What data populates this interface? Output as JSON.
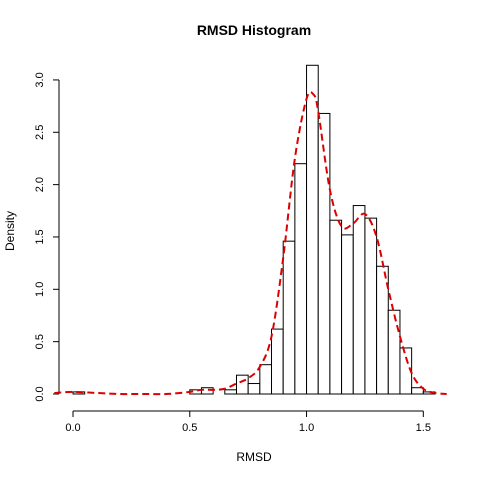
{
  "chart_data": {
    "type": "bar",
    "title": "RMSD Histogram",
    "xlabel": "RMSD",
    "ylabel": "Density",
    "xlim": [
      -0.06,
      1.61
    ],
    "ylim": [
      0,
      3.2
    ],
    "x_ticks": [
      0.0,
      0.5,
      1.0,
      1.5
    ],
    "x_tick_labels": [
      "0.0",
      "0.5",
      "1.0",
      "1.5"
    ],
    "y_ticks": [
      0.0,
      0.5,
      1.0,
      1.5,
      2.0,
      2.5,
      3.0
    ],
    "y_tick_labels": [
      "0.0",
      "0.5",
      "1.0",
      "1.5",
      "2.0",
      "2.5",
      "3.0"
    ],
    "grid": false,
    "legend": "none",
    "bin_width": 0.05,
    "bins": [
      {
        "start": 0.0,
        "end": 0.05,
        "density": 0.02
      },
      {
        "start": 0.5,
        "end": 0.55,
        "density": 0.04
      },
      {
        "start": 0.55,
        "end": 0.6,
        "density": 0.06
      },
      {
        "start": 0.65,
        "end": 0.7,
        "density": 0.04
      },
      {
        "start": 0.7,
        "end": 0.75,
        "density": 0.18
      },
      {
        "start": 0.75,
        "end": 0.8,
        "density": 0.1
      },
      {
        "start": 0.8,
        "end": 0.85,
        "density": 0.28
      },
      {
        "start": 0.85,
        "end": 0.9,
        "density": 0.62
      },
      {
        "start": 0.9,
        "end": 0.95,
        "density": 1.46
      },
      {
        "start": 0.95,
        "end": 1.0,
        "density": 2.2
      },
      {
        "start": 1.0,
        "end": 1.05,
        "density": 3.14
      },
      {
        "start": 1.05,
        "end": 1.1,
        "density": 2.68
      },
      {
        "start": 1.1,
        "end": 1.15,
        "density": 1.66
      },
      {
        "start": 1.15,
        "end": 1.2,
        "density": 1.52
      },
      {
        "start": 1.2,
        "end": 1.25,
        "density": 1.8
      },
      {
        "start": 1.25,
        "end": 1.3,
        "density": 1.68
      },
      {
        "start": 1.3,
        "end": 1.35,
        "density": 1.22
      },
      {
        "start": 1.35,
        "end": 1.4,
        "density": 0.8
      },
      {
        "start": 1.4,
        "end": 1.45,
        "density": 0.44
      },
      {
        "start": 1.45,
        "end": 1.5,
        "density": 0.06
      },
      {
        "start": 1.5,
        "end": 1.55,
        "density": 0.02
      }
    ],
    "density_curve": {
      "color": "#dd0000",
      "style": "dashed",
      "x": [
        -0.08,
        0.0,
        0.1,
        0.2,
        0.3,
        0.4,
        0.5,
        0.55,
        0.6,
        0.65,
        0.7,
        0.75,
        0.8,
        0.85,
        0.9,
        0.95,
        1.0,
        1.03,
        1.05,
        1.1,
        1.15,
        1.2,
        1.25,
        1.3,
        1.35,
        1.4,
        1.45,
        1.5,
        1.55,
        1.6
      ],
      "y": [
        0.01,
        0.02,
        0.01,
        0.0,
        0.0,
        0.0,
        0.02,
        0.04,
        0.04,
        0.05,
        0.1,
        0.15,
        0.26,
        0.55,
        1.3,
        2.25,
        2.82,
        2.86,
        2.7,
        1.95,
        1.6,
        1.63,
        1.72,
        1.5,
        1.0,
        0.55,
        0.2,
        0.05,
        0.01,
        0.0
      ]
    }
  }
}
